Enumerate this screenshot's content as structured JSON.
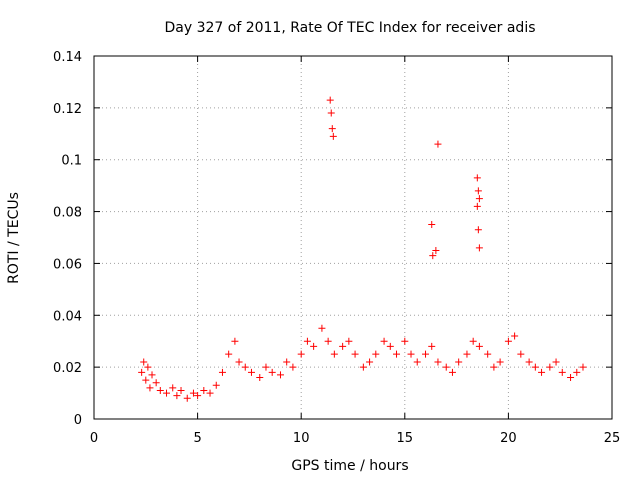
{
  "chart_data": {
    "type": "scatter",
    "title": "Day 327 of 2011, Rate Of TEC Index for receiver adis",
    "xlabel": "GPS time / hours",
    "ylabel": "ROTI / TECUs",
    "xlim": [
      0,
      25
    ],
    "ylim": [
      0,
      0.14
    ],
    "xticks": [
      0,
      5,
      10,
      15,
      20,
      25
    ],
    "yticks": [
      0,
      0.02,
      0.04,
      0.06,
      0.08,
      0.1,
      0.12,
      0.14
    ],
    "xtick_labels": [
      "0",
      "5",
      "10",
      "15",
      "20",
      "25"
    ],
    "ytick_labels": [
      "0",
      "0.02",
      "0.04",
      "0.06",
      "0.08",
      "0.1",
      "0.12",
      "0.14"
    ],
    "grid": true,
    "marker": "+",
    "color": "#ff0000",
    "series": [
      {
        "x": [
          2.3,
          2.4,
          2.5,
          2.6,
          2.7,
          2.8,
          3.0,
          3.2,
          3.5,
          3.8,
          4.0,
          4.2,
          4.5,
          4.8,
          5.0,
          5.3,
          5.6,
          5.9,
          6.2,
          6.5,
          6.8,
          7.0,
          7.3,
          7.6,
          8.0,
          8.3,
          8.6,
          9.0,
          9.3,
          9.6,
          10.0,
          10.3,
          10.6,
          11.0,
          11.3,
          11.6,
          12.0,
          12.3,
          12.6,
          13.0,
          13.3,
          13.6,
          14.0,
          14.3,
          14.6,
          15.0,
          15.3,
          15.6,
          16.0,
          16.3,
          16.6,
          17.0,
          17.3,
          17.6,
          18.0,
          18.3,
          18.6,
          19.0,
          19.3,
          19.6,
          20.0,
          20.3,
          20.6,
          21.0,
          21.3,
          21.6,
          22.0,
          22.3,
          22.6,
          23.0,
          23.3,
          23.6
        ],
        "y": [
          0.018,
          0.022,
          0.015,
          0.02,
          0.012,
          0.017,
          0.014,
          0.011,
          0.01,
          0.012,
          0.009,
          0.011,
          0.008,
          0.01,
          0.009,
          0.011,
          0.01,
          0.013,
          0.018,
          0.025,
          0.03,
          0.022,
          0.02,
          0.018,
          0.016,
          0.02,
          0.018,
          0.017,
          0.022,
          0.02,
          0.025,
          0.03,
          0.028,
          0.035,
          0.03,
          0.025,
          0.028,
          0.03,
          0.025,
          0.02,
          0.022,
          0.025,
          0.03,
          0.028,
          0.025,
          0.03,
          0.025,
          0.022,
          0.025,
          0.028,
          0.022,
          0.02,
          0.018,
          0.022,
          0.025,
          0.03,
          0.028,
          0.025,
          0.02,
          0.022,
          0.03,
          0.032,
          0.025,
          0.022,
          0.02,
          0.018,
          0.02,
          0.022,
          0.018,
          0.016,
          0.018,
          0.02
        ]
      },
      {
        "x": [
          11.4,
          11.45,
          11.5,
          11.55,
          16.3,
          16.35,
          16.5,
          16.6,
          18.5,
          18.55,
          18.6,
          18.5,
          18.55,
          18.6
        ],
        "y": [
          0.123,
          0.118,
          0.112,
          0.109,
          0.075,
          0.063,
          0.065,
          0.106,
          0.093,
          0.088,
          0.085,
          0.082,
          0.073,
          0.066
        ]
      }
    ]
  }
}
